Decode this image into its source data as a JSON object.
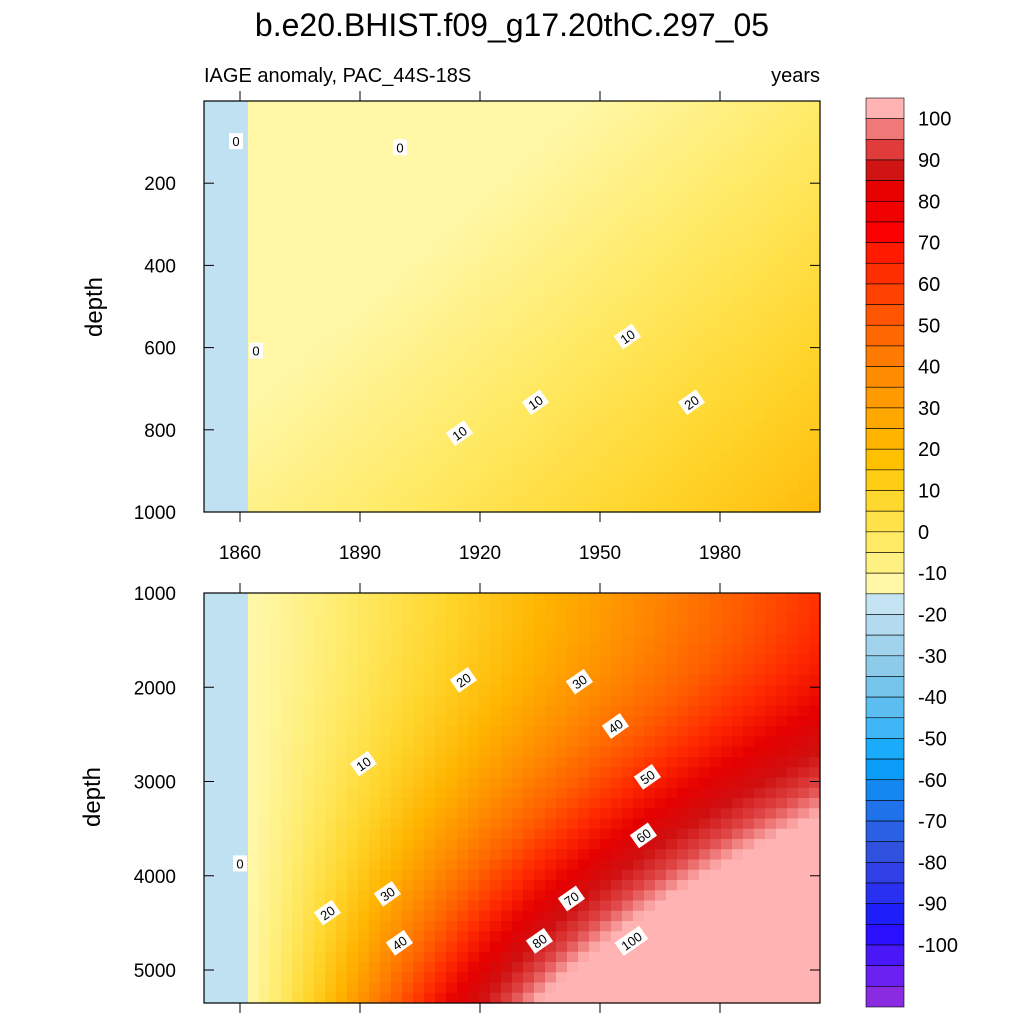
{
  "chart_data": {
    "type": "heatmap",
    "title": "b.e20.BHIST.f09_g17.20thC.297_05",
    "variable_label": "IAGE anomaly, PAC_44S-18S",
    "units_label": "years",
    "x_ticks": [
      "1860",
      "1890",
      "1920",
      "1950",
      "1980"
    ],
    "x_tick_values": [
      1860,
      1890,
      1920,
      1950,
      1980
    ],
    "xlim": [
      1851,
      2005
    ],
    "panels": [
      {
        "name": "upper",
        "ylabel": "depth",
        "ylim": [
          0,
          1000
        ],
        "y_ticks": [
          "200",
          "400",
          "600",
          "800",
          "1000"
        ],
        "y_tick_values": [
          200,
          400,
          600,
          800,
          1000
        ],
        "contour_labels": [
          {
            "text": "0",
            "year": 1859,
            "depth": 100
          },
          {
            "text": "0",
            "year": 1900,
            "depth": 115
          },
          {
            "text": "0",
            "year": 1864,
            "depth": 610
          },
          {
            "text": "10",
            "year": 1957,
            "depth": 575
          },
          {
            "text": "10",
            "year": 1934,
            "depth": 735
          },
          {
            "text": "10",
            "year": 1915,
            "depth": 810
          },
          {
            "text": "20",
            "year": 1973,
            "depth": 735
          }
        ]
      },
      {
        "name": "lower",
        "ylabel": "depth",
        "ylim": [
          1000,
          5350
        ],
        "y_ticks": [
          "1000",
          "2000",
          "3000",
          "4000",
          "5000"
        ],
        "y_tick_values": [
          1000,
          2000,
          3000,
          4000,
          5000
        ],
        "contour_labels": [
          {
            "text": "0",
            "year": 1860,
            "depth": 3880
          },
          {
            "text": "10",
            "year": 1891,
            "depth": 2820
          },
          {
            "text": "20",
            "year": 1916,
            "depth": 1930
          },
          {
            "text": "20",
            "year": 1882,
            "depth": 4400
          },
          {
            "text": "30",
            "year": 1945,
            "depth": 1950
          },
          {
            "text": "30",
            "year": 1897,
            "depth": 4200
          },
          {
            "text": "40",
            "year": 1954,
            "depth": 2420
          },
          {
            "text": "40",
            "year": 1900,
            "depth": 4720
          },
          {
            "text": "50",
            "year": 1962,
            "depth": 2960
          },
          {
            "text": "60",
            "year": 1961,
            "depth": 3580
          },
          {
            "text": "70",
            "year": 1943,
            "depth": 4250
          },
          {
            "text": "80",
            "year": 1935,
            "depth": 4700
          },
          {
            "text": "100",
            "year": 1958,
            "depth": 4700
          }
        ]
      }
    ],
    "colorbar": {
      "labels": [
        "100",
        "90",
        "80",
        "70",
        "60",
        "50",
        "40",
        "30",
        "20",
        "10",
        "0",
        "-10",
        "-20",
        "-30",
        "-40",
        "-50",
        "-60",
        "-70",
        "-80",
        "-90",
        "-100"
      ],
      "colors": [
        "#ffb3b3",
        "#f07878",
        "#e03c3c",
        "#d01414",
        "#e60000",
        "#f00000",
        "#fa0000",
        "#ff1a00",
        "#ff2e00",
        "#ff4200",
        "#ff5500",
        "#ff6800",
        "#ff7a00",
        "#ff8c00",
        "#ff9a00",
        "#ffa800",
        "#ffb400",
        "#ffc000",
        "#ffcc14",
        "#ffd82e",
        "#ffe24a",
        "#ffea66",
        "#fff082",
        "#fff7a6",
        "#c4e3f3",
        "#b3daef",
        "#a1d3ec",
        "#8ccbea",
        "#75c4eb",
        "#5cbef0",
        "#3fb7f6",
        "#1aacfa",
        "#0a9cf6",
        "#1487f0",
        "#2072ea",
        "#2a60e4",
        "#3050de",
        "#3040e6",
        "#2a30f0",
        "#1e1ef8",
        "#2a10ff",
        "#4a18f6",
        "#6a20f0",
        "#8a2be2"
      ]
    }
  }
}
